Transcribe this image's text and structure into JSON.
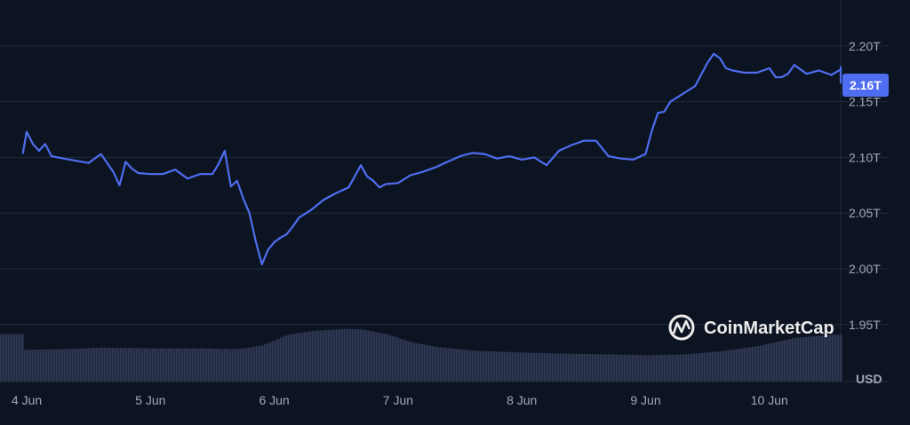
{
  "chart_data": {
    "type": "line",
    "title": "",
    "x_labels": [
      "4 Jun",
      "5 Jun",
      "6 Jun",
      "7 Jun",
      "8 Jun",
      "9 Jun",
      "10 Jun"
    ],
    "y_ticks": [
      "2.20T",
      "2.15T",
      "2.10T",
      "2.05T",
      "2.00T",
      "1.95T"
    ],
    "y_tick_values": [
      2.2,
      2.15,
      2.1,
      2.05,
      2.0,
      1.95
    ],
    "unit_label": "USD",
    "current_value_label": "2.16T",
    "ylim": [
      1.95,
      2.2
    ],
    "grid": true,
    "series": [
      {
        "x": [
          3.97,
          4.0,
          4.05,
          4.1,
          4.15,
          4.2,
          4.3,
          4.4,
          4.5,
          4.6,
          4.7,
          4.75,
          4.8,
          4.85,
          4.9,
          5.0,
          5.1,
          5.2,
          5.3,
          5.4,
          5.5,
          5.55,
          5.6,
          5.65,
          5.7,
          5.75,
          5.8,
          5.85,
          5.9,
          5.95,
          6.0,
          6.05,
          6.1,
          6.15,
          6.2,
          6.3,
          6.4,
          6.5,
          6.6,
          6.7,
          6.75,
          6.8,
          6.85,
          6.9,
          7.0,
          7.1,
          7.2,
          7.3,
          7.4,
          7.5,
          7.6,
          7.7,
          7.8,
          7.9,
          8.0,
          8.1,
          8.2,
          8.3,
          8.4,
          8.5,
          8.6,
          8.7,
          8.8,
          8.9,
          9.0,
          9.05,
          9.1,
          9.15,
          9.2,
          9.3,
          9.4,
          9.5,
          9.55,
          9.6,
          9.65,
          9.7,
          9.8,
          9.9,
          10.0,
          10.05,
          10.1,
          10.15,
          10.2,
          10.3,
          10.4,
          10.5,
          10.6,
          10.65,
          10.7
        ],
        "values": [
          2.104,
          2.123,
          2.112,
          2.106,
          2.112,
          2.101,
          2.099,
          2.097,
          2.095,
          2.103,
          2.087,
          2.075,
          2.096,
          2.09,
          2.086,
          2.085,
          2.085,
          2.089,
          2.081,
          2.085,
          2.085,
          2.094,
          2.106,
          2.074,
          2.079,
          2.063,
          2.05,
          2.025,
          2.004,
          2.017,
          2.024,
          2.028,
          2.031,
          2.038,
          2.046,
          2.053,
          2.062,
          2.068,
          2.073,
          2.093,
          2.083,
          2.079,
          2.073,
          2.076,
          2.077,
          2.084,
          2.087,
          2.091,
          2.096,
          2.101,
          2.104,
          2.103,
          2.099,
          2.101,
          2.098,
          2.1,
          2.093,
          2.106,
          2.111,
          2.115,
          2.115,
          2.101,
          2.099,
          2.098,
          2.103,
          2.124,
          2.14,
          2.141,
          2.15,
          2.157,
          2.164,
          2.185,
          2.193,
          2.189,
          2.18,
          2.178,
          2.176,
          2.176,
          2.18,
          2.172,
          2.172,
          2.175,
          2.183,
          2.175,
          2.178,
          2.174,
          2.179,
          2.181,
          2.167
        ]
      }
    ],
    "volume": {
      "x": [
        3.97,
        4.3,
        4.6,
        5.0,
        5.4,
        5.7,
        5.9,
        6.1,
        6.3,
        6.5,
        6.6,
        6.7,
        6.9,
        7.1,
        7.3,
        7.6,
        7.9,
        8.3,
        8.7,
        9.0,
        9.3,
        9.6,
        9.9,
        10.2,
        10.5,
        10.7
      ],
      "values": [
        0.42,
        0.43,
        0.45,
        0.44,
        0.44,
        0.43,
        0.48,
        0.62,
        0.67,
        0.69,
        0.7,
        0.69,
        0.63,
        0.52,
        0.46,
        0.41,
        0.39,
        0.37,
        0.36,
        0.35,
        0.36,
        0.4,
        0.47,
        0.58,
        0.62,
        0.63
      ]
    }
  },
  "watermark": {
    "brand": "CoinMarketCap",
    "icon": "coinmarketcap-logo"
  },
  "colors": {
    "background": "#0d1421",
    "line": "#4e6df0",
    "badge": "#4e6df0",
    "volume": "#2d3550",
    "grid": "#222b3a",
    "text": "#a1a7bb"
  }
}
